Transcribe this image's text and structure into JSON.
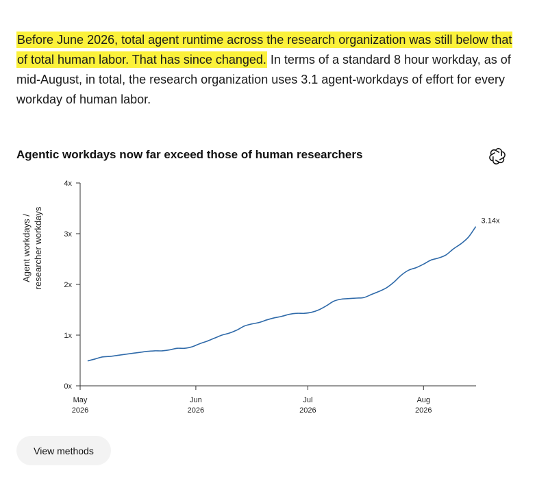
{
  "paragraph": {
    "highlighted": "Before June 2026, total agent runtime across the research organization was still below that of total human labor. That has since changed.",
    "rest": " In terms of a standard 8 hour workday, as of mid-August, in total, the research organization uses 3.1 agent-workdays of effort for every workday of human labor."
  },
  "highlight_color": "#fbf13a",
  "logo_icon": "openai-logo-icon",
  "chart_data": {
    "type": "line",
    "title": "Agentic workdays now far exceed those of human researchers",
    "ylabel_lines": [
      "Agent workdays /",
      "researcher workdays"
    ],
    "xlabel": "",
    "ylim": [
      0,
      4
    ],
    "yticks": [
      {
        "value": 0,
        "label": "0x"
      },
      {
        "value": 1,
        "label": "1x"
      },
      {
        "value": 2,
        "label": "2x"
      },
      {
        "value": 3,
        "label": "3x"
      },
      {
        "value": 4,
        "label": "4x"
      }
    ],
    "xlim": [
      "2026-05-01",
      "2026-08-16"
    ],
    "xticks": [
      {
        "date": "2026-05-01",
        "line1": "May",
        "line2": "2026"
      },
      {
        "date": "2026-06-01",
        "line1": "Jun",
        "line2": "2026"
      },
      {
        "date": "2026-07-01",
        "line1": "Jul",
        "line2": "2026"
      },
      {
        "date": "2026-08-01",
        "line1": "Aug",
        "line2": "2026"
      }
    ],
    "grid": false,
    "line_color": "#2f6aa9",
    "end_label": "3.14x",
    "series": [
      {
        "x": [
          "2026-05-03",
          "2026-05-05",
          "2026-05-07",
          "2026-05-09",
          "2026-05-11",
          "2026-05-13",
          "2026-05-15",
          "2026-05-17",
          "2026-05-19",
          "2026-05-21",
          "2026-05-23",
          "2026-05-25",
          "2026-05-27",
          "2026-05-29",
          "2026-05-31",
          "2026-06-02",
          "2026-06-04",
          "2026-06-06",
          "2026-06-08",
          "2026-06-10",
          "2026-06-12",
          "2026-06-14",
          "2026-06-16",
          "2026-06-18",
          "2026-06-20",
          "2026-06-22",
          "2026-06-24",
          "2026-06-26",
          "2026-06-28",
          "2026-06-30",
          "2026-07-02",
          "2026-07-04",
          "2026-07-06",
          "2026-07-08",
          "2026-07-10",
          "2026-07-12",
          "2026-07-14",
          "2026-07-16",
          "2026-07-18",
          "2026-07-20",
          "2026-07-22",
          "2026-07-24",
          "2026-07-26",
          "2026-07-28",
          "2026-07-30",
          "2026-08-01",
          "2026-08-03",
          "2026-08-05",
          "2026-08-07",
          "2026-08-09",
          "2026-08-11",
          "2026-08-13",
          "2026-08-15"
        ],
        "values": [
          0.49,
          0.53,
          0.57,
          0.58,
          0.6,
          0.62,
          0.64,
          0.66,
          0.68,
          0.69,
          0.69,
          0.71,
          0.74,
          0.74,
          0.77,
          0.83,
          0.88,
          0.94,
          1.0,
          1.04,
          1.1,
          1.18,
          1.22,
          1.25,
          1.3,
          1.34,
          1.37,
          1.41,
          1.43,
          1.43,
          1.45,
          1.5,
          1.58,
          1.67,
          1.71,
          1.72,
          1.73,
          1.74,
          1.8,
          1.86,
          1.93,
          2.04,
          2.18,
          2.28,
          2.33,
          2.4,
          2.48,
          2.52,
          2.58,
          2.7,
          2.8,
          2.93,
          3.14
        ]
      }
    ]
  },
  "button": {
    "label": "View methods"
  }
}
